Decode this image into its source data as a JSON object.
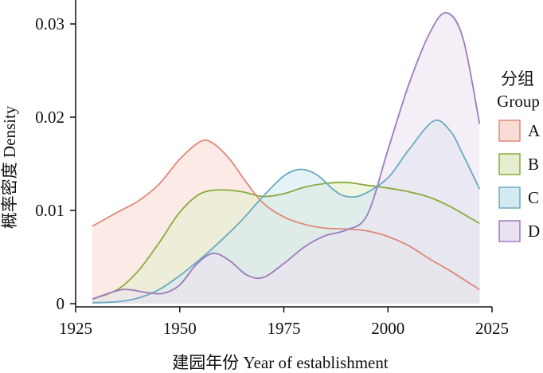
{
  "chart_data": {
    "type": "area",
    "title": "",
    "xlabel": "建园年份 Year of establishment",
    "ylabel": "概率密度 Density",
    "xlim": [
      1925,
      2025
    ],
    "ylim": [
      0,
      0.032
    ],
    "x_ticks": [
      1925,
      1950,
      1975,
      2000,
      2025
    ],
    "x_tick_labels": [
      "1925",
      "1950",
      "1975",
      "2000",
      "2025"
    ],
    "y_ticks": [
      0,
      0.01,
      0.02,
      0.03
    ],
    "y_tick_labels": [
      "0",
      "0.01",
      "0.02",
      "0.03"
    ],
    "grid": false,
    "legend": {
      "title_cn": "分组",
      "title_en": "Group",
      "placement": "right"
    },
    "series": [
      {
        "name": "A",
        "color": "#e0877a",
        "fill": "#f9dcd6",
        "x": [
          1929,
          1935,
          1940,
          1945,
          1950,
          1955,
          1958,
          1962,
          1966,
          1970,
          1975,
          1980,
          1985,
          1990,
          1995,
          2000,
          2005,
          2010,
          2015,
          2022
        ],
        "y": [
          0.0083,
          0.0098,
          0.011,
          0.0128,
          0.0155,
          0.0174,
          0.0172,
          0.0155,
          0.013,
          0.0108,
          0.0093,
          0.0085,
          0.0081,
          0.008,
          0.0078,
          0.0072,
          0.0062,
          0.0048,
          0.0035,
          0.0015
        ]
      },
      {
        "name": "B",
        "color": "#8aab3c",
        "fill": "#e6eecf",
        "x": [
          1929,
          1935,
          1940,
          1945,
          1950,
          1955,
          1960,
          1965,
          1970,
          1975,
          1980,
          1985,
          1990,
          1995,
          2000,
          2005,
          2010,
          2015,
          2022
        ],
        "y": [
          0.0005,
          0.0015,
          0.0035,
          0.0065,
          0.0098,
          0.0118,
          0.0122,
          0.012,
          0.0115,
          0.0118,
          0.0125,
          0.0129,
          0.013,
          0.0127,
          0.0124,
          0.012,
          0.0114,
          0.0104,
          0.0086
        ]
      },
      {
        "name": "C",
        "color": "#6aaac2",
        "fill": "#d3eaf0",
        "x": [
          1929,
          1935,
          1940,
          1945,
          1950,
          1955,
          1960,
          1965,
          1970,
          1975,
          1979,
          1983,
          1987,
          1990,
          1994,
          2000,
          2005,
          2011,
          2015,
          2018,
          2022
        ],
        "y": [
          0.0001,
          0.0002,
          0.0006,
          0.0015,
          0.003,
          0.0048,
          0.0068,
          0.009,
          0.0115,
          0.0137,
          0.0144,
          0.0138,
          0.0122,
          0.0115,
          0.0117,
          0.0135,
          0.0165,
          0.0196,
          0.0185,
          0.016,
          0.0123
        ]
      },
      {
        "name": "D",
        "color": "#9c7bbf",
        "fill": "#ece3f2",
        "x": [
          1929,
          1935,
          1938,
          1942,
          1946,
          1950,
          1954,
          1958,
          1962,
          1966,
          1970,
          1975,
          1980,
          1985,
          1990,
          1995,
          2000,
          2005,
          2010,
          2014,
          2018,
          2022
        ],
        "y": [
          0.0005,
          0.0014,
          0.0015,
          0.0012,
          0.0011,
          0.002,
          0.0042,
          0.0054,
          0.0046,
          0.0031,
          0.0028,
          0.0043,
          0.0061,
          0.0073,
          0.0079,
          0.0095,
          0.0165,
          0.0235,
          0.029,
          0.0312,
          0.0285,
          0.0193
        ]
      }
    ]
  }
}
